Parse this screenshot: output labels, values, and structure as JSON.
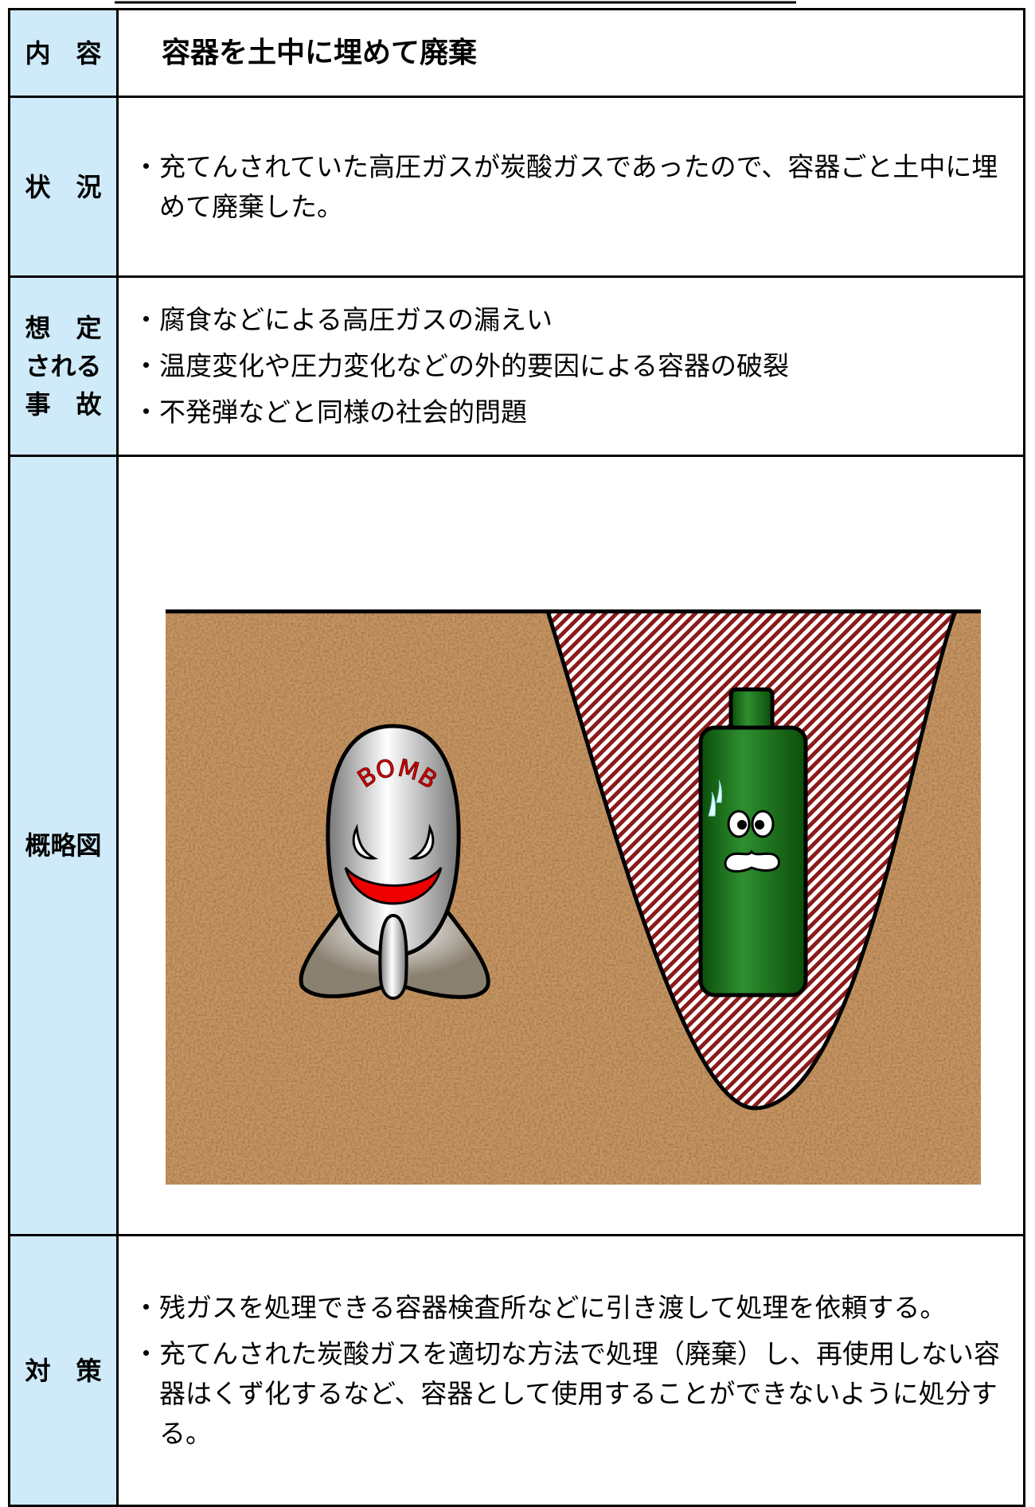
{
  "rows": [
    {
      "label": [
        "内　容"
      ],
      "title": "容器を土中に埋めて廃棄"
    },
    {
      "label": [
        "状　況"
      ],
      "items": [
        "・充てんされていた高圧ガスが炭酸ガスであったので、容器ごと土中に埋めて廃棄した。"
      ]
    },
    {
      "label": [
        "想　定",
        "される",
        "事　故"
      ],
      "items": [
        "・腐食などによる高圧ガスの漏えい",
        "・温度変化や圧力変化などの外的要因による容器の破裂",
        "・不発弾などと同様の社会的問題"
      ]
    },
    {
      "label": [
        "概略図"
      ]
    },
    {
      "label": [
        "対　策"
      ],
      "items": [
        "・残ガスを処理できる容器検査所などに引き渡して処理を依頼する。",
        "・充てんされた炭酸ガスを適切な方法で処理（廃棄）し、再使用しない容器はくず化するなど、容器として使用することができないように処分する。"
      ]
    }
  ],
  "figure": {
    "bomb_label": "BOMB"
  }
}
